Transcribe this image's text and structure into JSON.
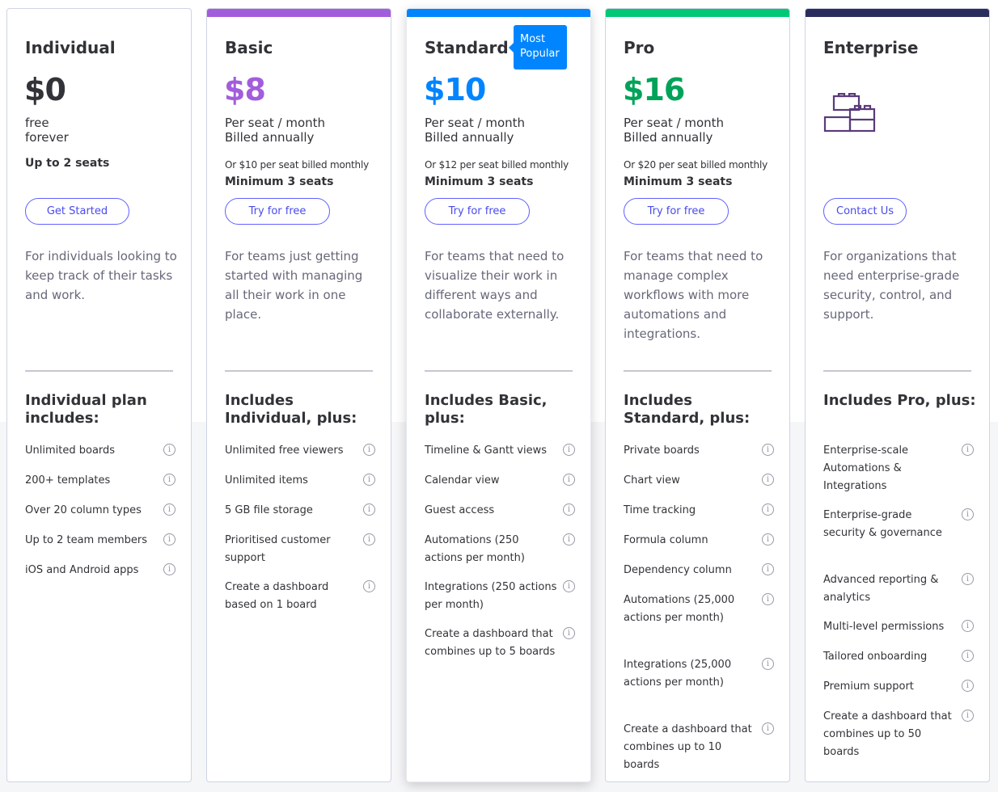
{
  "colors": {
    "basic": "#a25ddc",
    "standard": "#0085ff",
    "pro": "#00a359",
    "enterprise": "#2b2c5e",
    "cta_border": "#6161ff"
  },
  "plans": [
    {
      "name": "Individual",
      "price": "$0",
      "per_line1": "free",
      "per_line2": "forever",
      "seats": "Up to 2 seats",
      "cta": "Get Started",
      "description": "For individuals looking to keep track of their tasks and work.",
      "includes": "Individual plan includes:",
      "features": [
        "Unlimited boards",
        "200+ templates",
        "Over 20 column types",
        "Up to 2 team members",
        "iOS and Android apps"
      ]
    },
    {
      "name": "Basic",
      "price": "$8",
      "per_line1": "Per seat / month",
      "per_line2": "Billed annually",
      "monthly": "Or $10 per seat billed monthly",
      "minimum": "Minimum 3 seats",
      "cta": "Try for free",
      "description": "For teams just getting started with managing all their work in one place.",
      "includes": "Includes Individual, plus:",
      "features": [
        "Unlimited free viewers",
        "Unlimited items",
        "5 GB file storage",
        "Prioritised customer support",
        "Create a dashboard based on 1 board"
      ]
    },
    {
      "name": "Standard",
      "badge_line1": "Most",
      "badge_line2": "Popular",
      "price": "$10",
      "per_line1": "Per seat / month",
      "per_line2": "Billed annually",
      "monthly": "Or $12 per seat billed monthly",
      "minimum": "Minimum 3 seats",
      "cta": "Try for free",
      "description": "For teams that need to visualize their work in different ways and collaborate externally.",
      "includes": "Includes Basic, plus:",
      "features": [
        "Timeline & Gantt views",
        "Calendar view",
        "Guest access",
        "Automations (250 actions per month)",
        "Integrations (250 actions per month)",
        "Create a dashboard that combines up to 5 boards"
      ]
    },
    {
      "name": "Pro",
      "price": "$16",
      "per_line1": "Per seat / month",
      "per_line2": "Billed annually",
      "monthly": "Or $20 per seat billed monthly",
      "minimum": "Minimum 3 seats",
      "cta": "Try for free",
      "description": "For teams that need to manage complex workflows with more automations and integrations.",
      "includes": "Includes Standard, plus:",
      "features": [
        "Private boards",
        "Chart view",
        "Time tracking",
        "Formula column",
        "Dependency column",
        "Automations (25,000 actions per month)",
        "Integrations (25,000 actions per month)",
        "Create a dashboard that combines up to 10 boards"
      ]
    },
    {
      "name": "Enterprise",
      "cta": "Contact Us",
      "description": "For organizations that need enterprise-grade security, control, and support.",
      "includes": "Includes Pro, plus:",
      "features": [
        "Enterprise-scale Automations & Integrations",
        "Enterprise-grade security & governance",
        "Advanced reporting & analytics",
        "Multi-level permissions",
        "Tailored onboarding",
        "Premium support",
        "Create a dashboard that combines up to 50 boards"
      ]
    }
  ],
  "info_icon_glyph": "i"
}
